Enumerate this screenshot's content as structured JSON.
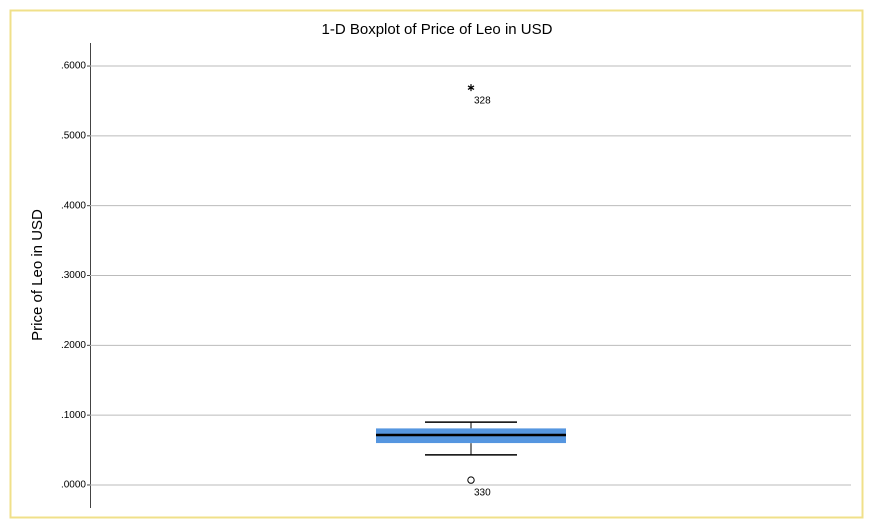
{
  "chart_data": {
    "type": "box",
    "title": "1-D Boxplot of Price of Leo in USD",
    "y_label": "Price of Leo in USD",
    "box": {
      "whisker_low": 0.043,
      "q1": 0.06,
      "median": 0.0716,
      "q3": 0.081,
      "whisker_high": 0.09
    },
    "outliers": [
      {
        "value": 0.007,
        "case": "330"
      }
    ],
    "extremes": [
      {
        "value": 0.569,
        "case": "328"
      }
    ],
    "color": "#5596e0",
    "ylim": [
      -0.033,
      0.633
    ],
    "yticks": [
      {
        "value": 0,
        "label": ".0000"
      },
      {
        "value": 0.1,
        "label": ".1000"
      },
      {
        "value": 0.2,
        "label": ".2000"
      },
      {
        "value": 0.3,
        "label": ".3000"
      },
      {
        "value": 0.4,
        "label": ".4000"
      },
      {
        "value": 0.5,
        "label": ".5000"
      },
      {
        "value": 0.6,
        "label": ".6000"
      }
    ],
    "grid": true
  }
}
